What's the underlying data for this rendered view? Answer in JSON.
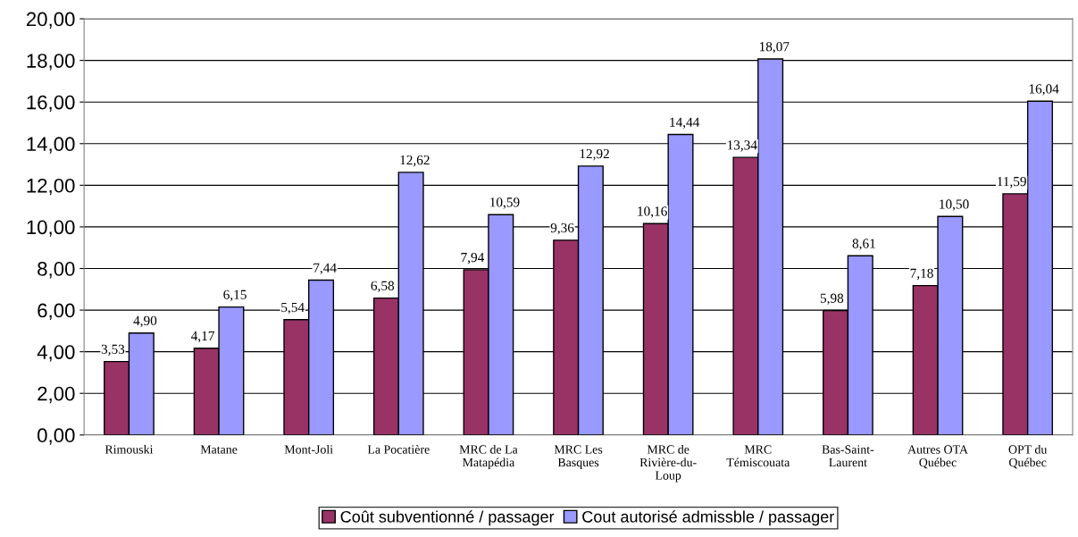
{
  "chart_data": {
    "type": "bar",
    "categories": [
      "Rimouski",
      "Matane",
      "Mont-Joli",
      "La Pocatière",
      "MRC de La\nMatapédia",
      "MRC Les\nBasques",
      "MRC de\nRivière-du-\nLoup",
      "MRC\nTémiscouata",
      "Bas-Saint-\nLaurent",
      "Autres OTA\nQuébec",
      "OPT du\nQuébec"
    ],
    "series": [
      {
        "name": "Coût subventionné / passager",
        "color": "#993366",
        "values": [
          3.53,
          4.17,
          5.54,
          6.58,
          7.94,
          9.36,
          10.16,
          13.34,
          5.98,
          7.18,
          11.59
        ],
        "value_labels": [
          "3,53",
          "4,17",
          "5,54",
          "6,58",
          "7,94",
          "9,36",
          "10,16",
          "13,34",
          "5,98",
          "7,18",
          "11,59"
        ]
      },
      {
        "name": "Cout autorisé admissble / passager",
        "color": "#9999ff",
        "values": [
          4.9,
          6.15,
          7.44,
          12.62,
          10.59,
          12.92,
          14.44,
          18.07,
          8.61,
          10.5,
          16.04
        ],
        "value_labels": [
          "4,90",
          "6,15",
          "7,44",
          "12,62",
          "10,59",
          "12,92",
          "14,44",
          "18,07",
          "8,61",
          "10,50",
          "16,04"
        ]
      }
    ],
    "ylim": [
      0,
      20
    ],
    "yticks": [
      {
        "value": 0,
        "label": "0,00"
      },
      {
        "value": 2,
        "label": "2,00"
      },
      {
        "value": 4,
        "label": "4,00"
      },
      {
        "value": 6,
        "label": "6,00"
      },
      {
        "value": 8,
        "label": "8,00"
      },
      {
        "value": 10,
        "label": "10,00"
      },
      {
        "value": 12,
        "label": "12,00"
      },
      {
        "value": 14,
        "label": "14,00"
      },
      {
        "value": 16,
        "label": "16,00"
      },
      {
        "value": 18,
        "label": "18,00"
      },
      {
        "value": 20,
        "label": "20,00"
      }
    ],
    "grid": "y",
    "legend": "bottom"
  }
}
